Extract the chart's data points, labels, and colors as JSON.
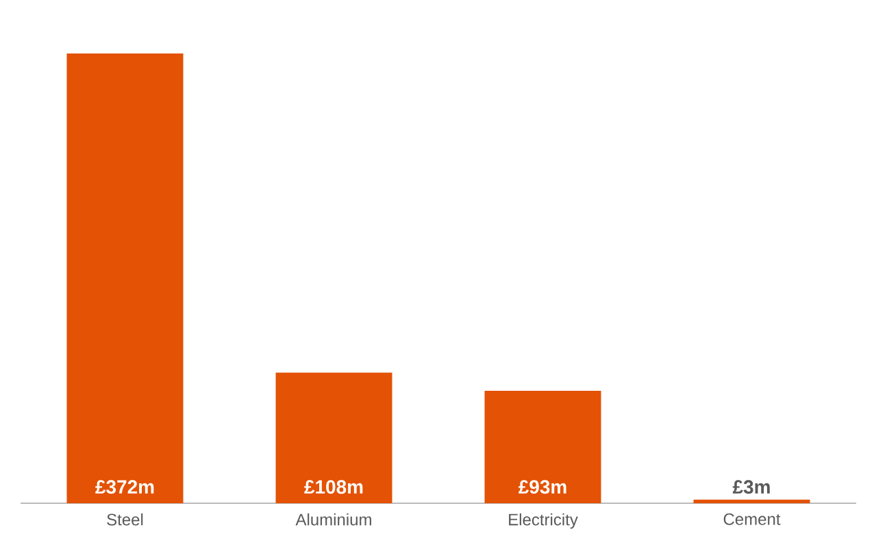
{
  "chart_data": {
    "type": "bar",
    "categories": [
      "Steel",
      "Aluminium",
      "Electricity",
      "Cement"
    ],
    "values": [
      372,
      108,
      93,
      3
    ],
    "value_labels": [
      "£372m",
      "£108m",
      "£93m",
      "£3m"
    ],
    "color": "#e35205"
  }
}
